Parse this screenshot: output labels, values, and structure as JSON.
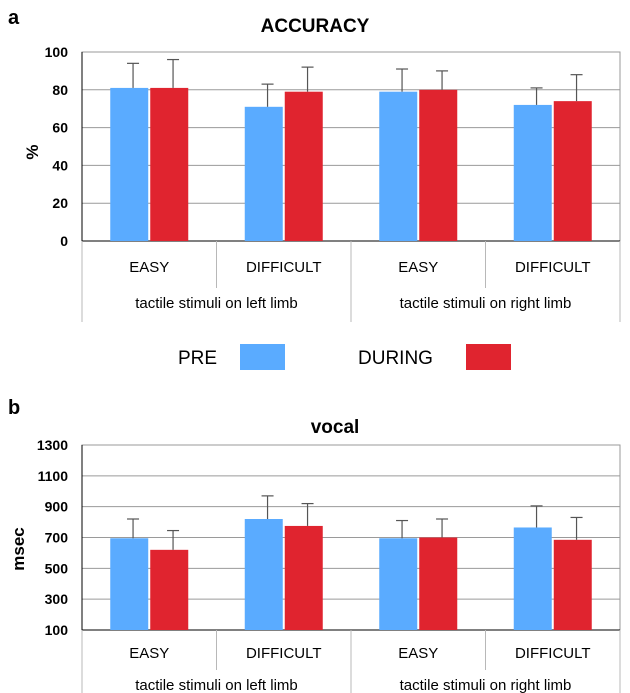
{
  "colors": {
    "pre": "#5aabff",
    "during": "#e0242f"
  },
  "legend": {
    "pre_label": "PRE",
    "during_label": "DURING"
  },
  "chart_data": [
    {
      "panel": "a",
      "type": "bar",
      "title": "ACCURACY",
      "ylabel": "%",
      "xlabel": "",
      "ylim": [
        0,
        100
      ],
      "yticks": [
        0,
        20,
        40,
        60,
        80,
        100
      ],
      "grid": true,
      "categories": [
        "EASY",
        "DIFFICULT",
        "EASY",
        "DIFFICULT"
      ],
      "groups": [
        "tactile stimuli on left limb",
        "tactile stimuli on right limb"
      ],
      "series": [
        {
          "name": "PRE",
          "values": [
            81,
            71,
            79,
            72
          ],
          "error": [
            13,
            12,
            12,
            9
          ]
        },
        {
          "name": "DURING",
          "values": [
            81,
            79,
            80,
            74
          ],
          "error": [
            15,
            13,
            10,
            14
          ]
        }
      ]
    },
    {
      "panel": "b",
      "type": "bar",
      "title": "vocal",
      "ylabel": "msec",
      "xlabel": "",
      "ylim": [
        100,
        1300
      ],
      "yticks": [
        100,
        300,
        500,
        700,
        900,
        1100,
        1300
      ],
      "grid": true,
      "categories": [
        "EASY",
        "DIFFICULT",
        "EASY",
        "DIFFICULT"
      ],
      "groups": [
        "tactile stimuli on left limb",
        "tactile stimuli on right limb"
      ],
      "series": [
        {
          "name": "PRE",
          "values": [
            695,
            820,
            695,
            765
          ],
          "error": [
            125,
            150,
            115,
            140
          ]
        },
        {
          "name": "DURING",
          "values": [
            620,
            775,
            700,
            685
          ],
          "error": [
            125,
            145,
            120,
            145
          ]
        }
      ]
    }
  ]
}
